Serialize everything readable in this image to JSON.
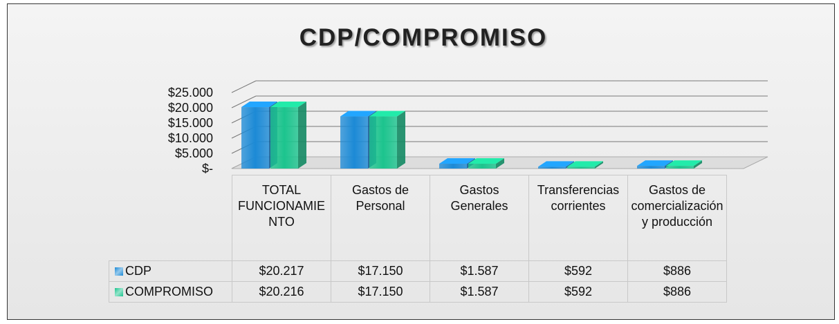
{
  "chart_data": {
    "type": "bar3d",
    "title": "CDP/COMPROMISO",
    "categories": [
      "TOTAL FUNCIONAMIENTO",
      "Gastos de Personal",
      "Gastos Generales",
      "Transferencias corrientes",
      "Gastos de comercialización y producción"
    ],
    "series": [
      {
        "name": "CDP",
        "color": "#1c8ad6",
        "values": [
          20217,
          17150,
          1587,
          592,
          886
        ],
        "value_labels": [
          "$20.217",
          "$17.150",
          "$1.587",
          "$592",
          "$886"
        ]
      },
      {
        "name": "COMPROMISO",
        "color": "#1cc48e",
        "values": [
          20216,
          17150,
          1587,
          592,
          886
        ],
        "value_labels": [
          "$20.216",
          "$17.150",
          "$1.587",
          "$592",
          "$886"
        ]
      }
    ],
    "ylim": [
      0,
      25000
    ],
    "yticks": [
      {
        "value": 0,
        "label": "$-"
      },
      {
        "value": 5000,
        "label": "$5.000"
      },
      {
        "value": 10000,
        "label": "$10.000"
      },
      {
        "value": 15000,
        "label": "$15.000"
      },
      {
        "value": 20000,
        "label": "$20.000"
      },
      {
        "value": 25000,
        "label": "$25.000"
      }
    ],
    "grid": true,
    "data_table": true
  }
}
